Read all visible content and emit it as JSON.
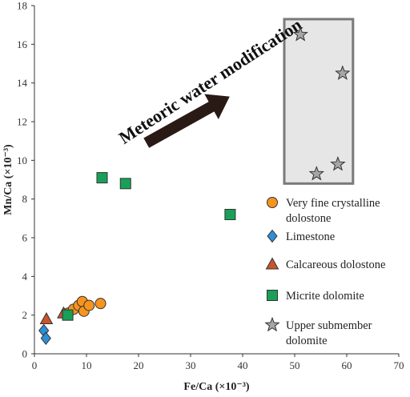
{
  "chart_data": {
    "type": "scatter",
    "xlabel": "Fe/Ca (×10⁻³)",
    "ylabel": "Mn/Ca (×10⁻³)",
    "xlim": [
      0,
      70
    ],
    "ylim": [
      0,
      18
    ],
    "xticks": [
      0,
      10,
      20,
      30,
      40,
      50,
      60,
      70
    ],
    "yticks": [
      0,
      2,
      4,
      6,
      8,
      10,
      12,
      14,
      16,
      18
    ],
    "grid": false,
    "legend_position": "right",
    "annotation": {
      "text": "Meteoric water modification",
      "arrow_from": [
        21.5,
        10.9
      ],
      "arrow_to": [
        37.5,
        13.3
      ]
    },
    "highlight_box": {
      "x": [
        48,
        61.2
      ],
      "y": [
        8.8,
        17.3
      ]
    },
    "series": [
      {
        "name": "Very fine crystalline dolostone",
        "marker": "circle",
        "color": "#f7941d",
        "points": [
          [
            6.5,
            2.1
          ],
          [
            7.5,
            2.3
          ],
          [
            8.5,
            2.5
          ],
          [
            9.2,
            2.7
          ],
          [
            9.5,
            2.2
          ],
          [
            10.5,
            2.5
          ],
          [
            12.7,
            2.6
          ]
        ]
      },
      {
        "name": "Limestone",
        "marker": "diamond",
        "color": "#2e8fd6",
        "points": [
          [
            1.8,
            1.2
          ],
          [
            2.2,
            0.8
          ]
        ]
      },
      {
        "name": "Calcareous dolostone",
        "marker": "triangle",
        "color": "#c8552b",
        "points": [
          [
            2.3,
            1.8
          ],
          [
            5.6,
            2.1
          ]
        ]
      },
      {
        "name": "Micrite dolomite",
        "marker": "square",
        "color": "#18a058",
        "points": [
          [
            6.4,
            2.0
          ],
          [
            13.0,
            9.1
          ],
          [
            17.5,
            8.8
          ],
          [
            37.6,
            7.2
          ]
        ]
      },
      {
        "name": "Upper submember dolomite",
        "marker": "star",
        "color": "#a6a6a6",
        "points": [
          [
            51.1,
            16.5
          ],
          [
            54.2,
            9.3
          ],
          [
            58.3,
            9.8
          ],
          [
            59.2,
            14.5
          ]
        ]
      }
    ]
  }
}
